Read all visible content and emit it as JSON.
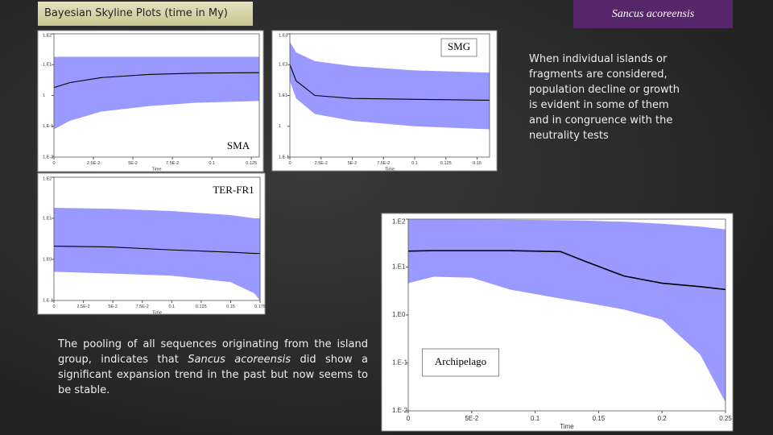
{
  "header": {
    "title": "Bayesian Skyline Plots (time in My)",
    "species": "Sancus acoreensis"
  },
  "notes": {
    "right": "When individual islands or fragments are considered, population decline or growth is evident in some of them and in congruence with the neutrality tests",
    "bottom_left": [
      "The pooling of all sequences originating from the island group, indicates that ",
      "Sancus acoreensis",
      " did show a significant expansion trend in the past but now seems to be stable."
    ]
  },
  "plots": [
    {
      "label": "SMA",
      "x_label": "Time",
      "log_scale": true,
      "band_color": "#9999ff",
      "line_color": "#000000",
      "xlim": [
        0,
        0.13
      ],
      "ylim": [
        0.01,
        100
      ],
      "xticks": [
        0,
        {
          "value": 0.025,
          "label": "2.5E-2"
        },
        {
          "value": 0.05,
          "label": "5E-2"
        },
        {
          "value": 0.075,
          "label": "7.5E-2"
        },
        0.1,
        0.125
      ],
      "yticks": [
        {
          "value": 100,
          "label": "1.E2"
        },
        {
          "value": 10,
          "label": "1.E1"
        },
        1,
        {
          "value": 0.1,
          "label": "1.E-1"
        },
        {
          "value": 0.01,
          "label": "1.E-2"
        }
      ],
      "x": [
        0,
        0.01,
        0.03,
        0.06,
        0.09,
        0.13
      ],
      "median": [
        1.8,
        2.6,
        3.8,
        4.8,
        5.3,
        5.5
      ],
      "upper": [
        18,
        18,
        18,
        18,
        18,
        18
      ],
      "lower": [
        0.08,
        0.15,
        0.3,
        0.45,
        0.58,
        0.66
      ]
    },
    {
      "label": "SMG",
      "x_label": "Time",
      "log_scale": true,
      "band_color": "#9999ff",
      "line_color": "#000000",
      "xlim": [
        0,
        0.16
      ],
      "ylim": [
        0.1,
        1000
      ],
      "xticks": [
        0,
        {
          "value": 0.025,
          "label": "2.5E-2"
        },
        {
          "value": 0.05,
          "label": "5E-2"
        },
        {
          "value": 0.075,
          "label": "7.5E-2"
        },
        0.1,
        0.125,
        0.15
      ],
      "yticks": [
        {
          "value": 1000,
          "label": "1.E3"
        },
        {
          "value": 100,
          "label": "1.E2"
        },
        {
          "value": 10,
          "label": "1.E1"
        },
        1,
        {
          "value": 0.1,
          "label": "1.E-1"
        }
      ],
      "x": [
        0,
        0.005,
        0.02,
        0.05,
        0.1,
        0.16
      ],
      "median": [
        100,
        30,
        10,
        8,
        7.5,
        7
      ],
      "upper": [
        550,
        250,
        130,
        90,
        65,
        55
      ],
      "lower": [
        30,
        8,
        2.5,
        1.5,
        1,
        0.8
      ]
    },
    {
      "label": "TER-FR1",
      "x_label": "Time",
      "log_scale": true,
      "band_color": "#9999ff",
      "line_color": "#000000",
      "xlim": [
        0,
        0.175
      ],
      "ylim": [
        0.1,
        100
      ],
      "xticks": [
        0,
        {
          "value": 0.025,
          "label": "2.5E-2"
        },
        {
          "value": 0.05,
          "label": "5E-2"
        },
        {
          "value": 0.075,
          "label": "7.5E-2"
        },
        0.1,
        0.125,
        0.15,
        0.175
      ],
      "yticks": [
        {
          "value": 100,
          "label": "1.E2"
        },
        {
          "value": 10,
          "label": "1.E1"
        },
        {
          "value": 1,
          "label": "1.E0"
        },
        {
          "value": 0.1,
          "label": "1.E-1"
        }
      ],
      "x": [
        0,
        0.05,
        0.1,
        0.15,
        0.17,
        0.175
      ],
      "median": [
        2.1,
        2,
        1.7,
        1.5,
        1.4,
        1.4
      ],
      "upper": [
        18,
        17,
        15,
        12,
        10,
        10
      ],
      "lower": [
        0.5,
        0.45,
        0.4,
        0.28,
        0.15,
        0.1
      ]
    },
    {
      "label": "Archipelago",
      "x_label": "Time",
      "log_scale": true,
      "band_color": "#9999ff",
      "line_color": "#000000",
      "xlim": [
        0,
        0.25
      ],
      "ylim": [
        0.01,
        100
      ],
      "xticks": [
        0,
        {
          "value": 0.05,
          "label": "5E-2"
        },
        0.1,
        0.15,
        0.2,
        0.25
      ],
      "yticks": [
        {
          "value": 100,
          "label": "1.E2"
        },
        {
          "value": 10,
          "label": "1.E1"
        },
        {
          "value": 1,
          "label": "1.E0"
        },
        {
          "value": 0.1,
          "label": "1.E-1"
        },
        {
          "value": 0.01,
          "label": "1.E-2"
        }
      ],
      "x": [
        0,
        0.02,
        0.05,
        0.08,
        0.12,
        0.14,
        0.17,
        0.2,
        0.23,
        0.25
      ],
      "median": [
        21.5,
        22,
        22,
        22,
        21,
        13,
        6.5,
        4.6,
        3.9,
        3.4
      ],
      "upper": [
        100,
        100,
        99,
        97,
        95,
        93,
        88,
        80,
        70,
        61
      ],
      "lower": [
        4.6,
        6.3,
        6,
        3.4,
        2.2,
        1.8,
        1.3,
        0.8,
        0.15,
        0.015
      ]
    }
  ]
}
